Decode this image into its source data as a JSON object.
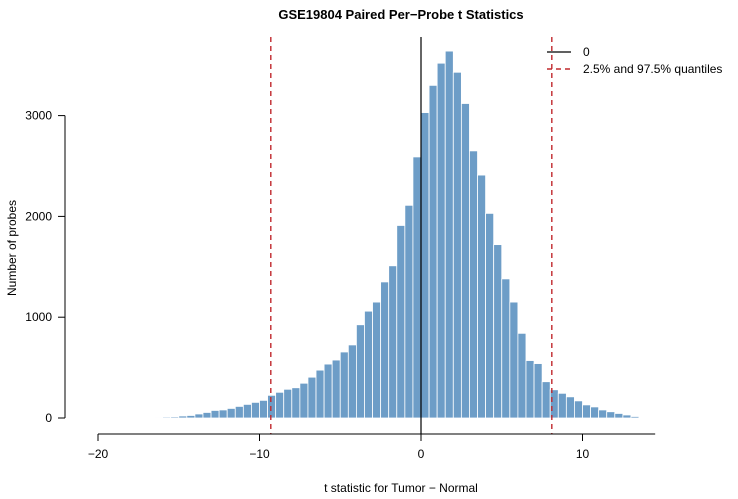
{
  "chart_data": {
    "type": "bar",
    "title": "GSE19804 Paired Per−Probe t Statistics",
    "xlabel": "t statistic for Tumor − Normal",
    "ylabel": "Number of probes",
    "xlim": [
      -20,
      14.5
    ],
    "ylim": [
      0,
      3650
    ],
    "x_ticks": [
      -20,
      -10,
      0,
      10
    ],
    "x_tick_labels": [
      "−20",
      "−10",
      "0",
      "10"
    ],
    "y_ticks": [
      0,
      1000,
      2000,
      3000
    ],
    "y_tick_labels": [
      "0",
      "1000",
      "2000",
      "3000"
    ],
    "bin_width": 0.5,
    "bins": [
      {
        "x0": -17.0,
        "count": 5
      },
      {
        "x0": -16.5,
        "count": 8
      },
      {
        "x0": -16.0,
        "count": 10
      },
      {
        "x0": -15.5,
        "count": 12
      },
      {
        "x0": -15.0,
        "count": 20
      },
      {
        "x0": -14.5,
        "count": 25
      },
      {
        "x0": -14.0,
        "count": 40
      },
      {
        "x0": -13.5,
        "count": 55
      },
      {
        "x0": -13.0,
        "count": 75
      },
      {
        "x0": -12.5,
        "count": 80
      },
      {
        "x0": -12.0,
        "count": 95
      },
      {
        "x0": -11.5,
        "count": 115
      },
      {
        "x0": -11.0,
        "count": 135
      },
      {
        "x0": -10.5,
        "count": 155
      },
      {
        "x0": -10.0,
        "count": 175
      },
      {
        "x0": -9.5,
        "count": 225
      },
      {
        "x0": -9.0,
        "count": 255
      },
      {
        "x0": -8.5,
        "count": 285
      },
      {
        "x0": -8.0,
        "count": 300
      },
      {
        "x0": -7.5,
        "count": 345
      },
      {
        "x0": -7.0,
        "count": 405
      },
      {
        "x0": -6.5,
        "count": 475
      },
      {
        "x0": -6.0,
        "count": 535
      },
      {
        "x0": -5.5,
        "count": 575
      },
      {
        "x0": -5.0,
        "count": 655
      },
      {
        "x0": -4.5,
        "count": 725
      },
      {
        "x0": -4.0,
        "count": 925
      },
      {
        "x0": -3.5,
        "count": 1060
      },
      {
        "x0": -3.0,
        "count": 1150
      },
      {
        "x0": -2.5,
        "count": 1350
      },
      {
        "x0": -2.0,
        "count": 1510
      },
      {
        "x0": -1.5,
        "count": 1910
      },
      {
        "x0": -1.0,
        "count": 2110
      },
      {
        "x0": -0.5,
        "count": 2590
      },
      {
        "x0": 0.0,
        "count": 3030
      },
      {
        "x0": 0.5,
        "count": 3300
      },
      {
        "x0": 1.0,
        "count": 3520
      },
      {
        "x0": 1.5,
        "count": 3640
      },
      {
        "x0": 2.0,
        "count": 3430
      },
      {
        "x0": 2.5,
        "count": 3120
      },
      {
        "x0": 3.0,
        "count": 2650
      },
      {
        "x0": 3.5,
        "count": 2410
      },
      {
        "x0": 4.0,
        "count": 2030
      },
      {
        "x0": 4.5,
        "count": 1720
      },
      {
        "x0": 5.0,
        "count": 1380
      },
      {
        "x0": 5.5,
        "count": 1150
      },
      {
        "x0": 6.0,
        "count": 840
      },
      {
        "x0": 6.5,
        "count": 570
      },
      {
        "x0": 7.0,
        "count": 540
      },
      {
        "x0": 7.5,
        "count": 360
      },
      {
        "x0": 8.0,
        "count": 280
      },
      {
        "x0": 8.5,
        "count": 245
      },
      {
        "x0": 9.0,
        "count": 210
      },
      {
        "x0": 9.5,
        "count": 170
      },
      {
        "x0": 10.0,
        "count": 130
      },
      {
        "x0": 10.5,
        "count": 110
      },
      {
        "x0": 11.0,
        "count": 80
      },
      {
        "x0": 11.5,
        "count": 62
      },
      {
        "x0": 12.0,
        "count": 45
      },
      {
        "x0": 12.5,
        "count": 30
      },
      {
        "x0": 13.0,
        "count": 15
      },
      {
        "x0": 13.5,
        "count": 6
      }
    ],
    "reference_lines": [
      {
        "x": 0,
        "style": "solid",
        "color": "#000000"
      },
      {
        "x": -9.3,
        "style": "dashed",
        "color": "#c0282d"
      },
      {
        "x": 8.1,
        "style": "dashed",
        "color": "#c0282d"
      }
    ],
    "legend": {
      "placement": "top-right",
      "entries": [
        {
          "label": "0",
          "style": "solid",
          "color": "#000000"
        },
        {
          "label": "2.5% and 97.5% quantiles",
          "style": "dashed",
          "color": "#c0282d"
        }
      ]
    },
    "bar_color": "#6d9dc7",
    "grid": false
  }
}
